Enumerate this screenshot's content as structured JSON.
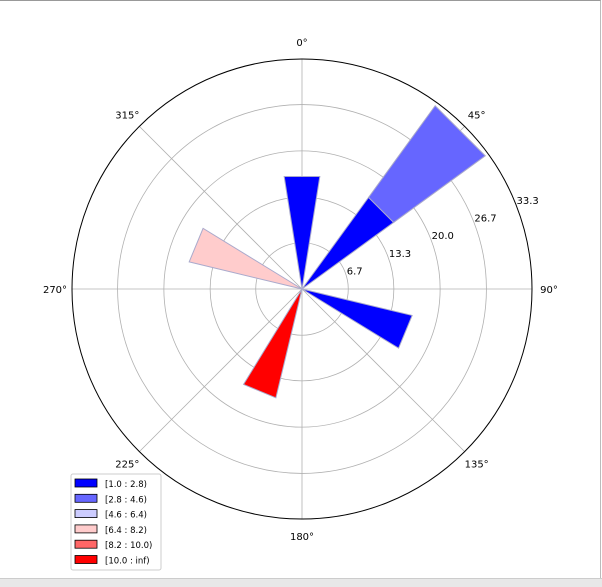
{
  "chart_data": {
    "type": "windrose",
    "angle_labels": [
      "0°",
      "45°",
      "90°",
      "135°",
      "180°",
      "225°",
      "270°",
      "315°"
    ],
    "radial_ticks": [
      6.7,
      13.3,
      20.0,
      26.7,
      33.3
    ],
    "radial_tick_labels": [
      "6.7",
      "13.3",
      "20.0",
      "26.7",
      "33.3"
    ],
    "rmax": 33.3,
    "grid": true,
    "sector_width_deg": 18,
    "bins": [
      {
        "label": "[1.0 : 2.8)",
        "color": "#0000ff"
      },
      {
        "label": "[2.8 : 4.6)",
        "color": "#6666ff"
      },
      {
        "label": "[4.6 : 6.4)",
        "color": "#ccccff"
      },
      {
        "label": "[6.4 : 8.2)",
        "color": "#ffcccc"
      },
      {
        "label": "[8.2 : 10.0)",
        "color": "#ff6666"
      },
      {
        "label": "[10.0 : inf)",
        "color": "#ff0000"
      }
    ],
    "bars": [
      {
        "direction": 0,
        "segments": [
          {
            "bin": 0,
            "from": 0,
            "to": 16.5
          }
        ]
      },
      {
        "direction": 45,
        "segments": [
          {
            "bin": 0,
            "from": 0,
            "to": 16.4
          },
          {
            "bin": 1,
            "from": 16.4,
            "to": 32.8
          }
        ]
      },
      {
        "direction": 112.5,
        "segments": [
          {
            "bin": 0,
            "from": 0,
            "to": 16.4
          }
        ]
      },
      {
        "direction": 202.5,
        "segments": [
          {
            "bin": 5,
            "from": 0,
            "to": 16.2
          }
        ]
      },
      {
        "direction": 292.5,
        "segments": [
          {
            "bin": 3,
            "from": 0,
            "to": 16.8
          }
        ]
      }
    ],
    "legend_placement": "lower-left"
  }
}
